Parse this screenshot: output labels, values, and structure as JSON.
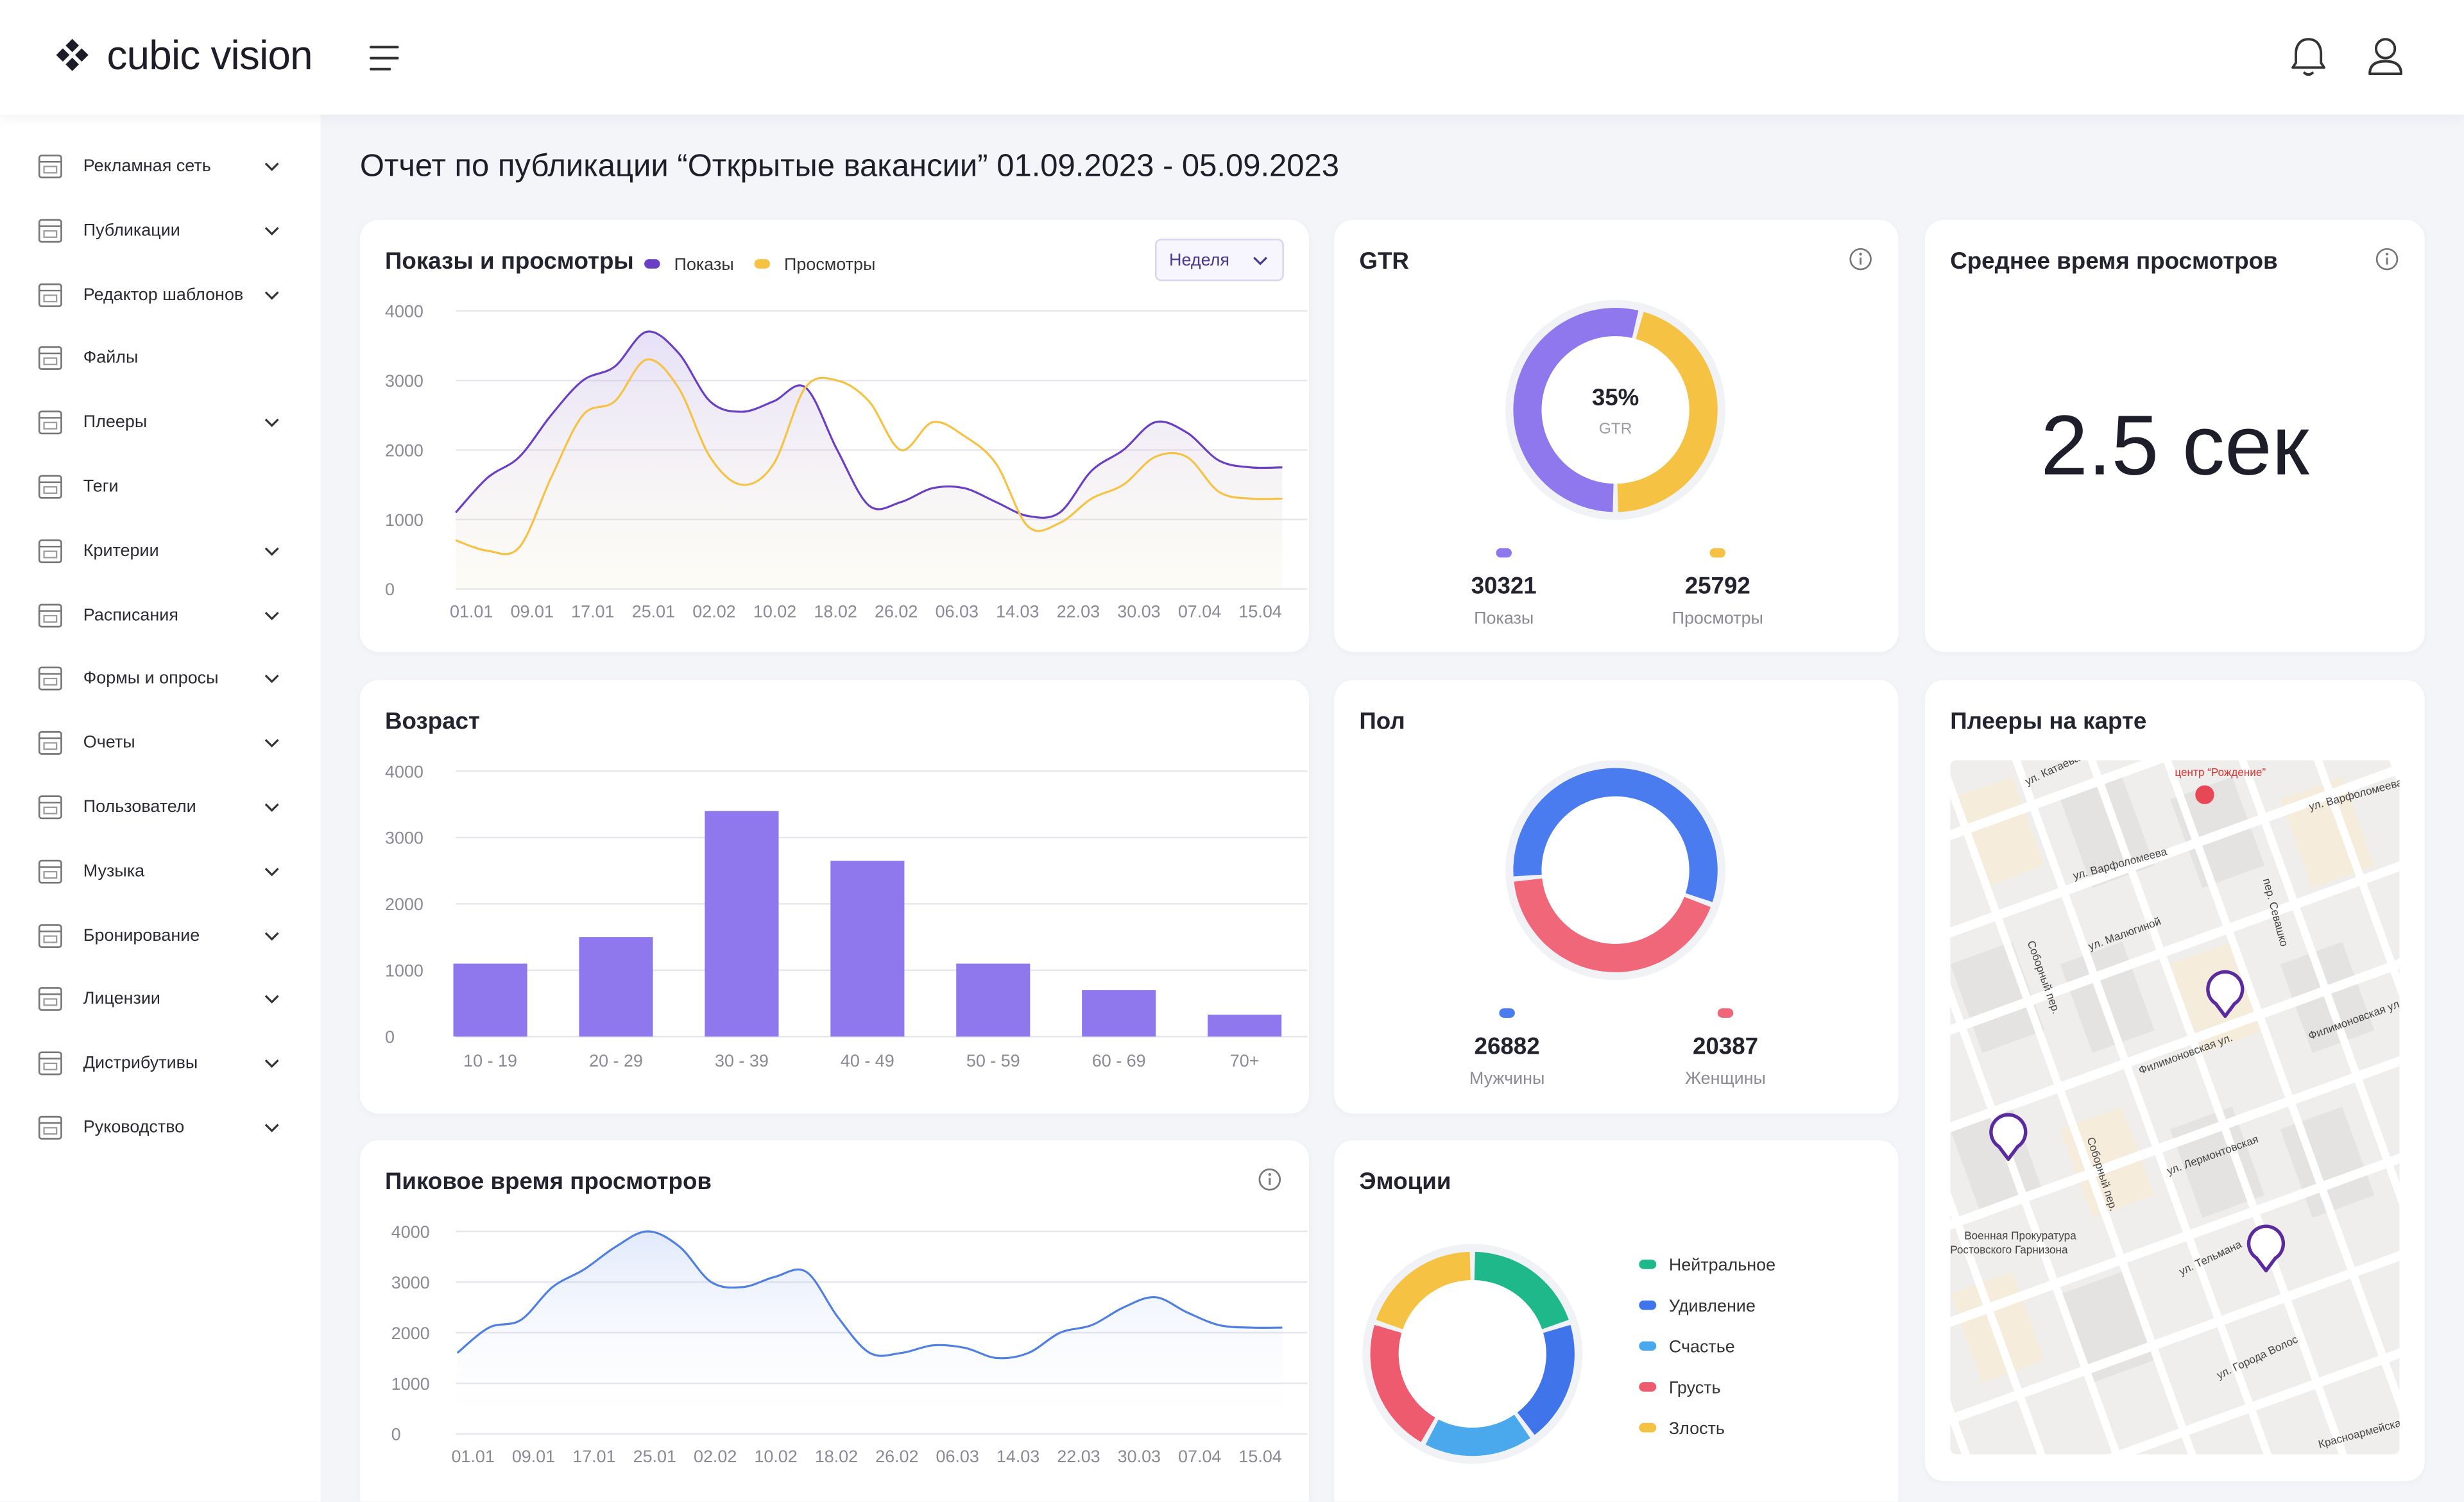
{
  "header": {
    "brand": "cubic vision"
  },
  "sidebar": {
    "items": [
      "Рекламная сеть",
      "Публикации",
      "Редактор шаблонов",
      "Файлы",
      "Плееры",
      "Теги",
      "Критерии",
      "Расписания",
      "Формы и опросы",
      "Очеты",
      "Пользователи",
      "Музыка",
      "Бронирование",
      "Лицензии",
      "Дистрибутивы",
      "Руководство"
    ]
  },
  "page_title": "Отчет по публикации “Открытые вакансии” 01.09.2023 - 05.09.2023",
  "kpi": {
    "title": "Среднее время просмотров",
    "value": "2.5 сек"
  },
  "map": {
    "title": "Плееры на карте",
    "labels": [
      "ул. Катаева",
      "центр “Рождение”",
      "ул. Варфоломеева",
      "ул. Варфоломеева",
      "Соборный пер.",
      "ул. Малюгиной",
      "пер. Севашко",
      "Филимоновская ул.",
      "Филимоновская ул.",
      "Соборный пер.",
      "ул. Лермонтовская",
      "Военная Прокуратура",
      "Ростовского Гарнизона",
      "ул. Тельмана",
      "ул. Города Волос",
      "Красноармейская"
    ]
  },
  "chart_data": [
    {
      "type": "line",
      "title": "Показы и просмотры",
      "period": "Неделя",
      "categories": [
        "01.01",
        null,
        "09.01",
        null,
        "17.01",
        null,
        "25.01",
        null,
        "02.02",
        null,
        "10.02",
        null,
        "18.02",
        null,
        "26.02",
        null,
        "06.03",
        null,
        "14.03",
        null,
        "22.03",
        null,
        "30.03",
        null,
        "07.04",
        null,
        "15.04"
      ],
      "series": [
        {
          "name": "Показы",
          "color": "#6a3fc4",
          "values": [
            1100,
            1600,
            1900,
            2500,
            3000,
            3200,
            3700,
            3400,
            2700,
            2550,
            2700,
            2900,
            2000,
            1200,
            1250,
            1450,
            1450,
            1250,
            1050,
            1100,
            1700,
            2000,
            2400,
            2250,
            1850,
            1750,
            1750
          ]
        },
        {
          "name": "Просмотры",
          "color": "#f5c243",
          "values": [
            700,
            550,
            600,
            1600,
            2500,
            2700,
            3300,
            2900,
            1900,
            1500,
            1800,
            2900,
            3000,
            2700,
            2000,
            2400,
            2200,
            1800,
            900,
            950,
            1300,
            1500,
            1900,
            1900,
            1400,
            1300,
            1300
          ]
        }
      ],
      "ylim": [
        0,
        4000
      ],
      "yticks": [
        0,
        1000,
        2000,
        3000,
        4000
      ],
      "grid": true
    },
    {
      "type": "bar",
      "title": "Возраст",
      "categories": [
        "10 - 19",
        "20 - 29",
        "30 - 39",
        "40 - 49",
        "50 - 59",
        "60 - 69",
        "70+"
      ],
      "values": [
        1100,
        1500,
        3400,
        2650,
        1100,
        700,
        330
      ],
      "color": "#8f78ee",
      "ylim": [
        0,
        4000
      ],
      "yticks": [
        0,
        1000,
        2000,
        3000,
        4000
      ],
      "grid": true
    },
    {
      "type": "line",
      "title": "Пиковое время просмотров",
      "categories": [
        "01.01",
        null,
        "09.01",
        null,
        "17.01",
        null,
        "25.01",
        null,
        "02.02",
        null,
        "10.02",
        null,
        "18.02",
        null,
        "26.02",
        null,
        "06.03",
        null,
        "14.03",
        null,
        "22.03",
        null,
        "30.03",
        null,
        "07.04",
        null,
        "15.04"
      ],
      "values": [
        1600,
        2100,
        2250,
        2900,
        3250,
        3700,
        4000,
        3700,
        3000,
        2900,
        3100,
        3200,
        2300,
        1600,
        1600,
        1750,
        1700,
        1500,
        1600,
        2000,
        2150,
        2500,
        2700,
        2400,
        2150,
        2100,
        2100
      ],
      "color": "#4f7fe0",
      "ylim": [
        0,
        4000
      ],
      "yticks": [
        0,
        1000,
        2000,
        3000,
        4000
      ],
      "grid": true
    },
    {
      "type": "pie",
      "title": "GTR",
      "center_label": "35%",
      "center_sublabel": "GTR",
      "categories": [
        "Показы",
        "Просмотры"
      ],
      "values": [
        30321,
        25792
      ],
      "colors": [
        "#8f78ee",
        "#f5c243"
      ]
    },
    {
      "type": "pie",
      "title": "Пол",
      "categories": [
        "Мужчины",
        "Женщины"
      ],
      "values": [
        26882,
        20387
      ],
      "colors": [
        "#4a7cf0",
        "#f0677a"
      ]
    },
    {
      "type": "pie",
      "title": "Эмоции",
      "legend": "right",
      "categories": [
        "Нейтральное",
        "Удивление",
        "Счастье",
        "Грусть",
        "Злость"
      ],
      "values": [
        20,
        20,
        18,
        22,
        20
      ],
      "colors": [
        "#1fb88a",
        "#3f74ea",
        "#4aa8ec",
        "#ee5a6e",
        "#f5c243"
      ]
    }
  ]
}
